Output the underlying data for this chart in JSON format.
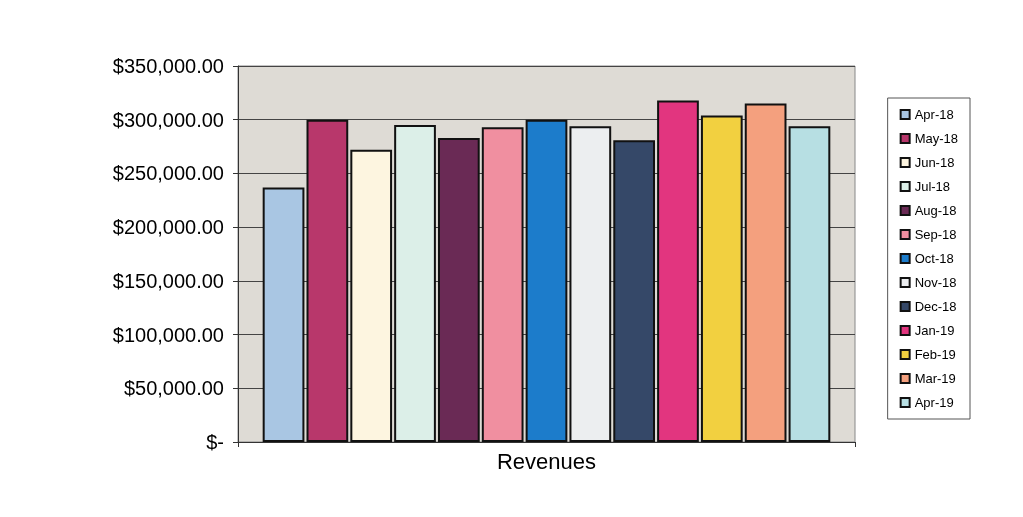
{
  "chart_data": {
    "type": "bar",
    "categories": [
      "Revenues"
    ],
    "series": [
      {
        "name": "Apr-18",
        "color": "#a9c6e3",
        "values": [
          237000
        ]
      },
      {
        "name": "May-18",
        "color": "#b8376b",
        "values": [
          300000
        ]
      },
      {
        "name": "Jun-18",
        "color": "#fdf5e0",
        "values": [
          272000
        ]
      },
      {
        "name": "Jul-18",
        "color": "#dcefe8",
        "values": [
          295000
        ]
      },
      {
        "name": "Aug-18",
        "color": "#6a2a55",
        "values": [
          283000
        ]
      },
      {
        "name": "Sep-18",
        "color": "#f08fa0",
        "values": [
          293000
        ]
      },
      {
        "name": "Oct-18",
        "color": "#1c7ccb",
        "values": [
          300000
        ]
      },
      {
        "name": "Nov-18",
        "color": "#eceef0",
        "values": [
          294000
        ]
      },
      {
        "name": "Dec-18",
        "color": "#354868",
        "values": [
          281000
        ]
      },
      {
        "name": "Jan-19",
        "color": "#e2357f",
        "values": [
          318000
        ]
      },
      {
        "name": "Feb-19",
        "color": "#f2d040",
        "values": [
          304000
        ]
      },
      {
        "name": "Mar-19",
        "color": "#f4a07e",
        "values": [
          315000
        ]
      },
      {
        "name": "Apr-19",
        "color": "#b7dfe3",
        "values": [
          294000
        ]
      }
    ],
    "ylim": [
      0,
      350000
    ],
    "yticks": [
      {
        "value": 0,
        "label": "$-"
      },
      {
        "value": 50000,
        "label": "$50,000.00"
      },
      {
        "value": 100000,
        "label": "$100,000.00"
      },
      {
        "value": 150000,
        "label": "$150,000.00"
      },
      {
        "value": 200000,
        "label": "$200,000.00"
      },
      {
        "value": 250000,
        "label": "$250,000.00"
      },
      {
        "value": 300000,
        "label": "$300,000.00"
      },
      {
        "value": 350000,
        "label": "$350,000.00"
      }
    ],
    "grid": "y",
    "legend": "right"
  }
}
